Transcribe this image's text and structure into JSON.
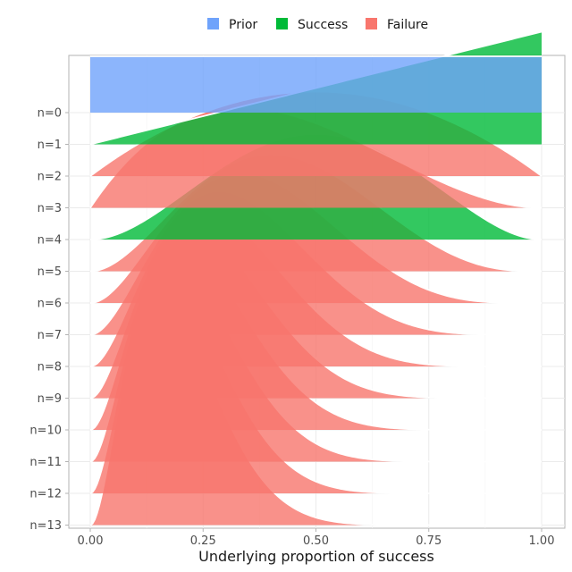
{
  "chart_data": {
    "type": "ridgeline",
    "title": "",
    "xlabel": "Underlying proportion of success",
    "ylabel": "",
    "xlim": [
      0,
      1
    ],
    "x_ticks": [
      0,
      0.25,
      0.5,
      0.75,
      1
    ],
    "x_tick_labels": [
      "0.00",
      "0.25",
      "0.50",
      "0.75",
      "1.00"
    ],
    "grid": true,
    "legend_position": "top",
    "legend": [
      {
        "key": "prior",
        "label": "Prior",
        "color": "#6fa3fb"
      },
      {
        "key": "success",
        "label": "Success",
        "color": "#00ba38"
      },
      {
        "key": "failure",
        "label": "Failure",
        "color": "#f8766d"
      }
    ],
    "series_description": "Beta posterior densities of the success proportion after n observations; outcome of the n-th observation colors each ridge",
    "ridges": [
      {
        "label": "n=0",
        "outcome": "prior",
        "alpha": 1,
        "beta": 1
      },
      {
        "label": "n=1",
        "outcome": "success",
        "alpha": 2,
        "beta": 1
      },
      {
        "label": "n=2",
        "outcome": "failure",
        "alpha": 2,
        "beta": 2
      },
      {
        "label": "n=3",
        "outcome": "failure",
        "alpha": 2,
        "beta": 3
      },
      {
        "label": "n=4",
        "outcome": "success",
        "alpha": 3,
        "beta": 3
      },
      {
        "label": "n=5",
        "outcome": "failure",
        "alpha": 3,
        "beta": 4
      },
      {
        "label": "n=6",
        "outcome": "failure",
        "alpha": 3,
        "beta": 5
      },
      {
        "label": "n=7",
        "outcome": "failure",
        "alpha": 3,
        "beta": 6
      },
      {
        "label": "n=8",
        "outcome": "failure",
        "alpha": 3,
        "beta": 7
      },
      {
        "label": "n=9",
        "outcome": "failure",
        "alpha": 3,
        "beta": 8
      },
      {
        "label": "n=10",
        "outcome": "failure",
        "alpha": 3,
        "beta": 9
      },
      {
        "label": "n=11",
        "outcome": "failure",
        "alpha": 3,
        "beta": 10
      },
      {
        "label": "n=12",
        "outcome": "failure",
        "alpha": 3,
        "beta": 11
      },
      {
        "label": "n=13",
        "outcome": "failure",
        "alpha": 3,
        "beta": 12
      }
    ]
  }
}
